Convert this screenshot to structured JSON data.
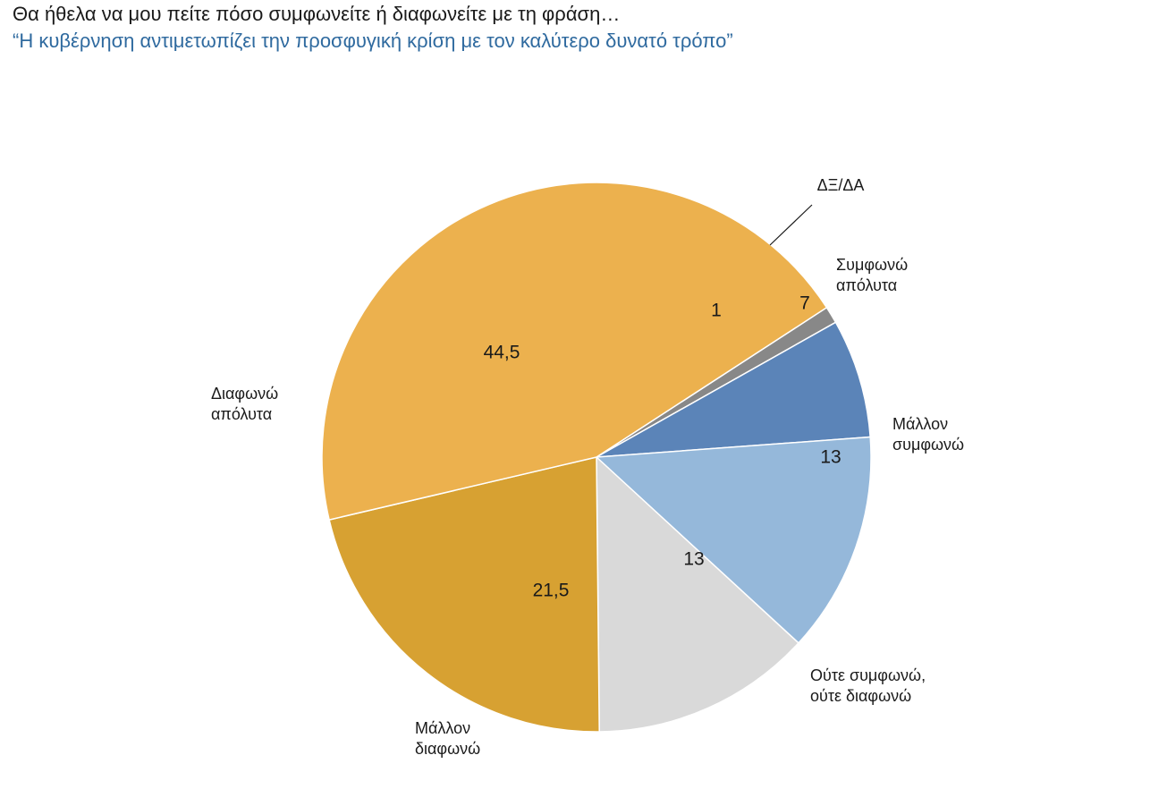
{
  "chart_data": {
    "type": "pie",
    "title": "Θα ήθελα να μου πείτε πόσο συμφωνείτε ή διαφωνείτε με τη  φράση…",
    "subtitle": "“Η κυβέρνηση αντιμετωπίζει την προσφυγική κρίση με τον καλύτερο δυνατό τρόπο”",
    "slices": [
      {
        "label": [
          "ΔΞ/ΔΑ"
        ],
        "value": 1,
        "value_label": "1",
        "color": "#888888"
      },
      {
        "label": [
          "Συμφωνώ",
          "απόλυτα"
        ],
        "value": 7,
        "value_label": "7",
        "color": "#5b84b8"
      },
      {
        "label": [
          "Μάλλον",
          "συμφωνώ"
        ],
        "value": 13,
        "value_label": "13",
        "color": "#95b8da"
      },
      {
        "label": [
          "Ούτε συμφωνώ,",
          "ούτε διαφωνώ"
        ],
        "value": 13,
        "value_label": "13",
        "color": "#d9d9d9"
      },
      {
        "label": [
          "Μάλλον",
          "διαφωνώ"
        ],
        "value": 21.5,
        "value_label": "21,5",
        "color": "#d7a132"
      },
      {
        "label": [
          "Διαφωνώ",
          "απόλυτα"
        ],
        "value": 44.5,
        "value_label": "44,5",
        "color": "#ecb14e"
      }
    ],
    "legend": "none"
  }
}
